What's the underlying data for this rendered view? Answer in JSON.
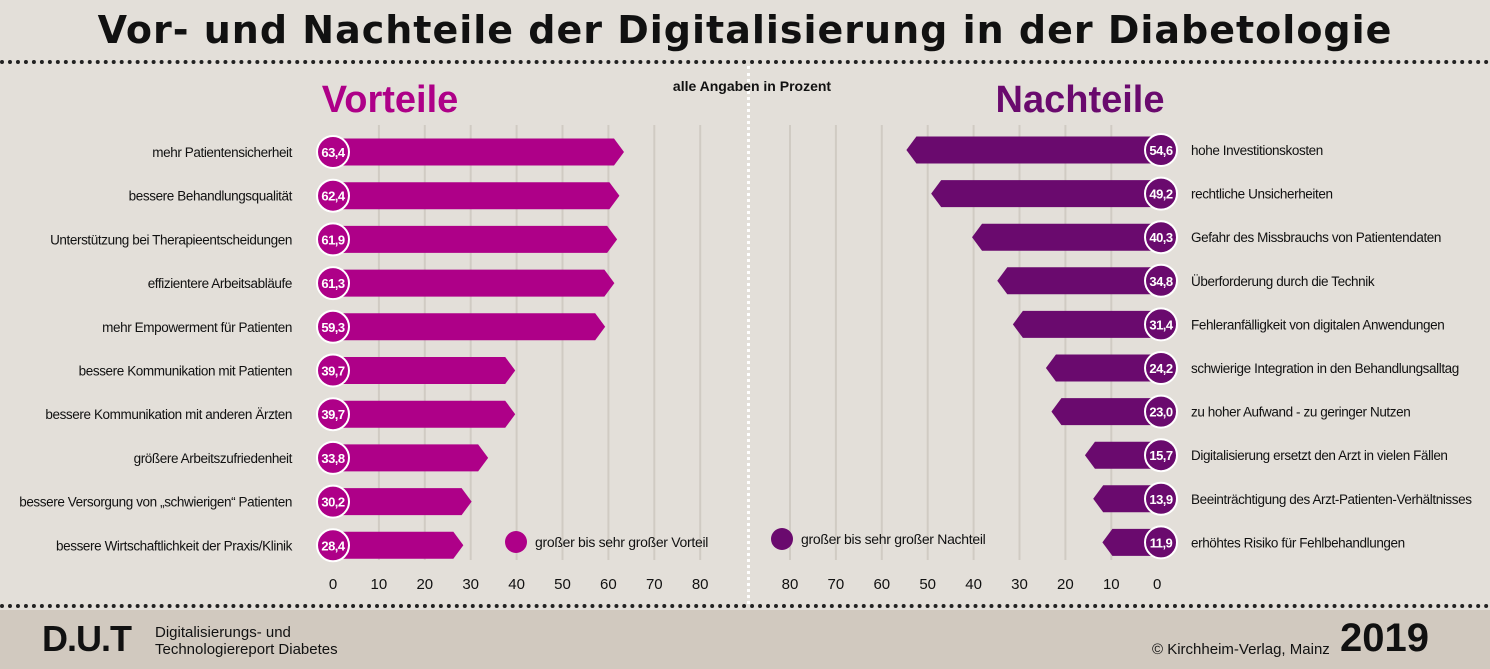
{
  "title": "Vor- und Nachteile der Digitalisierung in der Diabetologie",
  "note": "alle Angaben in Prozent",
  "colors": {
    "vorteile": "#ae0088",
    "nachteile": "#6a0a6e",
    "background": "#e3dfd9",
    "footer": "#d1c9bf"
  },
  "chart_data": [
    {
      "type": "bar",
      "title": "Vorteile",
      "orientation": "horizontal",
      "categories": [
        "mehr Patientensicherheit",
        "bessere Behandlungsqualität",
        "Unterstützung bei Therapieentscheidungen",
        "effizientere Arbeitsabläufe",
        "mehr Empowerment für Patienten",
        "bessere Kommunikation mit Patienten",
        "bessere Kommunikation mit anderen Ärzten",
        "größere Arbeitszufriedenheit",
        "bessere Versorgung von „schwierigen“ Patienten",
        "bessere Wirtschaftlichkeit der Praxis/Klinik"
      ],
      "values": [
        63.4,
        62.4,
        61.9,
        61.3,
        59.3,
        39.7,
        39.7,
        33.8,
        30.2,
        28.4
      ],
      "labels": [
        "63,4",
        "62,4",
        "61,9",
        "61,3",
        "59,3",
        "39,7",
        "39,7",
        "33,8",
        "30,2",
        "28,4"
      ],
      "series": [
        {
          "name": "großer bis sehr großer Vorteil"
        }
      ],
      "xlim": [
        0,
        80
      ],
      "ticks": [
        "0",
        "10",
        "20",
        "30",
        "40",
        "50",
        "60",
        "70",
        "80"
      ],
      "grid": true,
      "legend": "bottom-right"
    },
    {
      "type": "bar",
      "title": "Nachteile",
      "orientation": "horizontal-reversed",
      "categories": [
        "hohe Investitionskosten",
        "rechtliche Unsicherheiten",
        "Gefahr des Missbrauchs von Patientendaten",
        "Überforderung durch die Technik",
        "Fehleranfälligkeit von digitalen Anwendungen",
        "schwierige Integration in den Behandlungsalltag",
        "zu hoher Aufwand - zu geringer Nutzen",
        "Digitalisierung ersetzt den Arzt in vielen Fällen",
        "Beeinträchtigung des Arzt-Patienten-Verhältnisses",
        "erhöhtes Risiko für Fehlbehandlungen"
      ],
      "values": [
        54.6,
        49.2,
        40.3,
        34.8,
        31.4,
        24.2,
        23.0,
        15.7,
        13.9,
        11.9
      ],
      "labels": [
        "54,6",
        "49,2",
        "40,3",
        "34,8",
        "31,4",
        "24,2",
        "23,0",
        "15,7",
        "13,9",
        "11,9"
      ],
      "series": [
        {
          "name": "großer bis sehr großer Nachteil"
        }
      ],
      "xlim": [
        80,
        0
      ],
      "ticks": [
        "80",
        "70",
        "60",
        "50",
        "40",
        "30",
        "20",
        "10",
        "0"
      ],
      "grid": true,
      "legend": "bottom-left"
    }
  ],
  "footer": {
    "logo": "D.U.T",
    "line1": "Digitalisierungs- und",
    "line2": "Technologiereport Diabetes",
    "copyright": "© Kirchheim-Verlag, Mainz",
    "year": "2019"
  }
}
